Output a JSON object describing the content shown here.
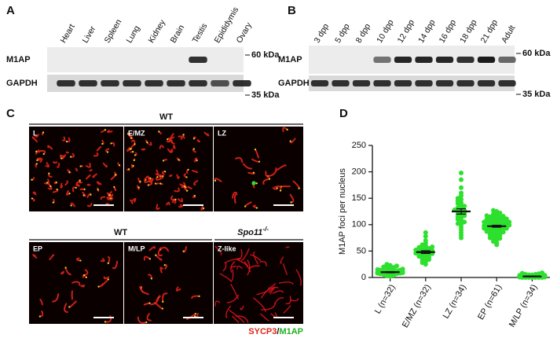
{
  "panel_a": {
    "label": "A",
    "lanes": [
      "Heart",
      "Liver",
      "Spleen",
      "Lung",
      "Kidney",
      "Brain",
      "Testis",
      "Epididymis",
      "Ovary"
    ],
    "rows": [
      "M1AP",
      "GAPDH"
    ],
    "markers": [
      "60 kDa",
      "35 kDa"
    ]
  },
  "panel_b": {
    "label": "B",
    "lanes": [
      "3 dpp",
      "5 dpp",
      "8 dpp",
      "10 dpp",
      "12 dpp",
      "14 dpp",
      "16 dpp",
      "18 dpp",
      "21 dpp",
      "Adult"
    ],
    "rows": [
      "M1AP",
      "GAPDH"
    ],
    "markers": [
      "60 kDa",
      "35 kDa"
    ]
  },
  "panel_c": {
    "label": "C",
    "top_header": "WT",
    "top_images": [
      "L",
      "E/MZ",
      "LZ"
    ],
    "bottom_header": "WT",
    "mutant_gene": "Spo11",
    "mutant_sup": "-/-",
    "bottom_images": [
      "EP",
      "M/LP",
      "Z-like"
    ],
    "stain_red": "SYCP3",
    "stain_sep": "/",
    "stain_green": "M1AP"
  },
  "chart_data": {
    "type": "strip",
    "label": "D",
    "ylabel": "M1AP foci per nucleus",
    "categories": [
      "L (n=32)",
      "E/MZ (n=32)",
      "LZ (n=34)",
      "EP (n=61)",
      "M/LP (n=34)"
    ],
    "color": "#2ee02e",
    "points": [
      [
        2,
        3,
        4,
        5,
        5,
        6,
        6,
        7,
        7,
        8,
        8,
        9,
        9,
        10,
        10,
        10,
        11,
        11,
        12,
        12,
        13,
        14,
        14,
        15,
        16,
        17,
        18,
        19,
        20,
        22,
        23,
        25
      ],
      [
        25,
        28,
        30,
        32,
        34,
        36,
        37,
        38,
        40,
        41,
        42,
        43,
        44,
        45,
        46,
        47,
        48,
        49,
        50,
        51,
        52,
        53,
        54,
        55,
        57,
        58,
        60,
        62,
        65,
        70,
        78,
        85
      ],
      [
        75,
        80,
        85,
        90,
        95,
        100,
        102,
        105,
        108,
        110,
        112,
        115,
        117,
        118,
        120,
        122,
        124,
        125,
        127,
        128,
        130,
        132,
        135,
        138,
        140,
        142,
        145,
        148,
        150,
        155,
        160,
        170,
        185,
        198
      ],
      [
        62,
        65,
        68,
        70,
        72,
        74,
        75,
        77,
        78,
        80,
        81,
        82,
        83,
        84,
        85,
        86,
        87,
        88,
        89,
        90,
        90,
        91,
        92,
        93,
        93,
        94,
        95,
        95,
        96,
        97,
        97,
        98,
        98,
        99,
        100,
        100,
        101,
        102,
        102,
        103,
        104,
        105,
        105,
        106,
        107,
        108,
        109,
        110,
        110,
        111,
        112,
        113,
        114,
        115,
        116,
        117,
        118,
        120,
        122,
        125,
        127
      ],
      [
        0,
        0,
        0,
        0,
        0,
        0,
        0,
        1,
        1,
        1,
        1,
        1,
        1,
        1,
        2,
        2,
        2,
        2,
        2,
        2,
        3,
        3,
        3,
        3,
        4,
        4,
        4,
        5,
        5,
        6,
        6,
        7,
        8,
        9
      ]
    ],
    "means": [
      10,
      48,
      125,
      97,
      2
    ],
    "errors": [
      1,
      2.5,
      5,
      1.8,
      0.5
    ],
    "ylim": [
      0,
      250
    ],
    "yticks": [
      0,
      50,
      100,
      150,
      200,
      250
    ]
  }
}
